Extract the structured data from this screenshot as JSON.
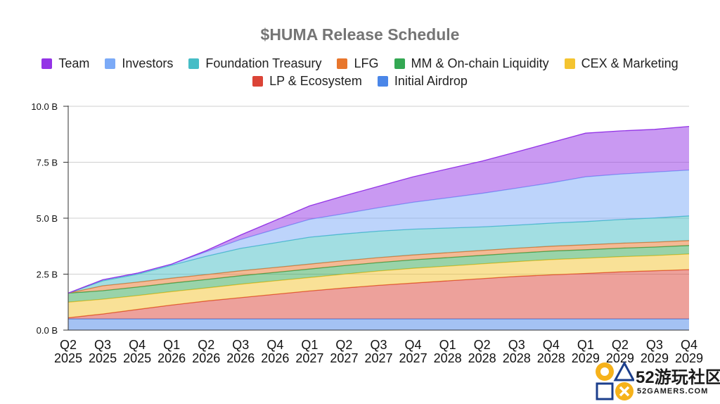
{
  "chart_data": {
    "type": "area",
    "stacked": true,
    "title": "$HUMA Release Schedule",
    "xlabel": "",
    "ylabel": "",
    "ylim": [
      0,
      10
    ],
    "yticks": [
      {
        "value": 0,
        "label": "0.0 B"
      },
      {
        "value": 2.5,
        "label": "2.5 B"
      },
      {
        "value": 5,
        "label": "5.0 B"
      },
      {
        "value": 7.5,
        "label": "7.5 B"
      },
      {
        "value": 10,
        "label": "10.0 B"
      }
    ],
    "categories": [
      {
        "q": "Q2",
        "y": "2025"
      },
      {
        "q": "Q3",
        "y": "2025"
      },
      {
        "q": "Q4",
        "y": "2025"
      },
      {
        "q": "Q1",
        "y": "2026"
      },
      {
        "q": "Q2",
        "y": "2026"
      },
      {
        "q": "Q3",
        "y": "2026"
      },
      {
        "q": "Q4",
        "y": "2026"
      },
      {
        "q": "Q1",
        "y": "2027"
      },
      {
        "q": "Q2",
        "y": "2027"
      },
      {
        "q": "Q3",
        "y": "2027"
      },
      {
        "q": "Q4",
        "y": "2027"
      },
      {
        "q": "Q1",
        "y": "2028"
      },
      {
        "q": "Q2",
        "y": "2028"
      },
      {
        "q": "Q3",
        "y": "2028"
      },
      {
        "q": "Q4",
        "y": "2028"
      },
      {
        "q": "Q1",
        "y": "2029"
      },
      {
        "q": "Q2",
        "y": "2029"
      },
      {
        "q": "Q3",
        "y": "2029"
      },
      {
        "q": "Q4",
        "y": "2029"
      }
    ],
    "series_order_bottom_to_top": [
      "Initial Airdrop",
      "LP & Ecosystem",
      "CEX & Marketing",
      "MM & On-chain Liquidity",
      "LFG",
      "Foundation Treasury",
      "Investors",
      "Team"
    ],
    "series": [
      {
        "name": "Initial Airdrop",
        "color": "#4a86e8",
        "values": [
          0.5,
          0.5,
          0.5,
          0.5,
          0.5,
          0.5,
          0.5,
          0.5,
          0.5,
          0.5,
          0.5,
          0.5,
          0.5,
          0.5,
          0.5,
          0.5,
          0.5,
          0.5,
          0.5
        ]
      },
      {
        "name": "LP & Ecosystem",
        "color": "#db4437",
        "values": [
          0.05,
          0.22,
          0.42,
          0.62,
          0.8,
          0.95,
          1.1,
          1.25,
          1.38,
          1.5,
          1.6,
          1.7,
          1.8,
          1.9,
          1.97,
          2.03,
          2.1,
          2.15,
          2.2
        ]
      },
      {
        "name": "CEX & Marketing",
        "color": "#f4c430",
        "values": [
          0.7,
          0.66,
          0.62,
          0.6,
          0.58,
          0.6,
          0.6,
          0.6,
          0.62,
          0.64,
          0.66,
          0.66,
          0.66,
          0.66,
          0.68,
          0.68,
          0.68,
          0.68,
          0.7
        ]
      },
      {
        "name": "MM & On-chain Liquidity",
        "color": "#34a853",
        "values": [
          0.4,
          0.38,
          0.38,
          0.38,
          0.38,
          0.38,
          0.38,
          0.38,
          0.38,
          0.38,
          0.38,
          0.38,
          0.38,
          0.38,
          0.38,
          0.38,
          0.38,
          0.38,
          0.38
        ]
      },
      {
        "name": "LFG",
        "color": "#e8762c",
        "values": [
          0.0,
          0.22,
          0.22,
          0.22,
          0.22,
          0.22,
          0.22,
          0.22,
          0.22,
          0.22,
          0.22,
          0.22,
          0.22,
          0.22,
          0.22,
          0.22,
          0.22,
          0.22,
          0.22
        ]
      },
      {
        "name": "Foundation Treasury",
        "color": "#46bdc6",
        "values": [
          0.0,
          0.22,
          0.35,
          0.58,
          0.82,
          1.0,
          1.1,
          1.2,
          1.2,
          1.18,
          1.15,
          1.1,
          1.05,
          1.03,
          1.03,
          1.04,
          1.06,
          1.08,
          1.1
        ]
      },
      {
        "name": "Investors",
        "color": "#7baaf7",
        "values": [
          0.0,
          0.05,
          0.05,
          0.05,
          0.2,
          0.4,
          0.6,
          0.8,
          0.9,
          1.05,
          1.2,
          1.35,
          1.5,
          1.65,
          1.8,
          2.0,
          2.03,
          2.05,
          2.05
        ]
      },
      {
        "name": "Team",
        "color": "#9334e6",
        "values": [
          0.0,
          0.0,
          0.0,
          0.0,
          0.05,
          0.2,
          0.4,
          0.6,
          0.8,
          0.95,
          1.14,
          1.29,
          1.44,
          1.62,
          1.8,
          1.95,
          1.93,
          1.91,
          1.95
        ]
      }
    ],
    "legend": {
      "position": "top",
      "rows": [
        [
          {
            "label": "Team",
            "color": "#9334e6"
          },
          {
            "label": "Investors",
            "color": "#7baaf7"
          },
          {
            "label": "Foundation Treasury",
            "color": "#46bdc6"
          },
          {
            "label": "LFG",
            "color": "#e8762c"
          },
          {
            "label": "MM & On-chain Liquidity",
            "color": "#34a853"
          },
          {
            "label": "CEX & Marketing",
            "color": "#f4c430"
          }
        ],
        [
          {
            "label": "LP & Ecosystem",
            "color": "#db4437"
          },
          {
            "label": "Initial Airdrop",
            "color": "#4a86e8"
          }
        ]
      ]
    }
  },
  "watermark": {
    "text": "52游玩社区",
    "subtext": "52GAMERS.COM"
  }
}
